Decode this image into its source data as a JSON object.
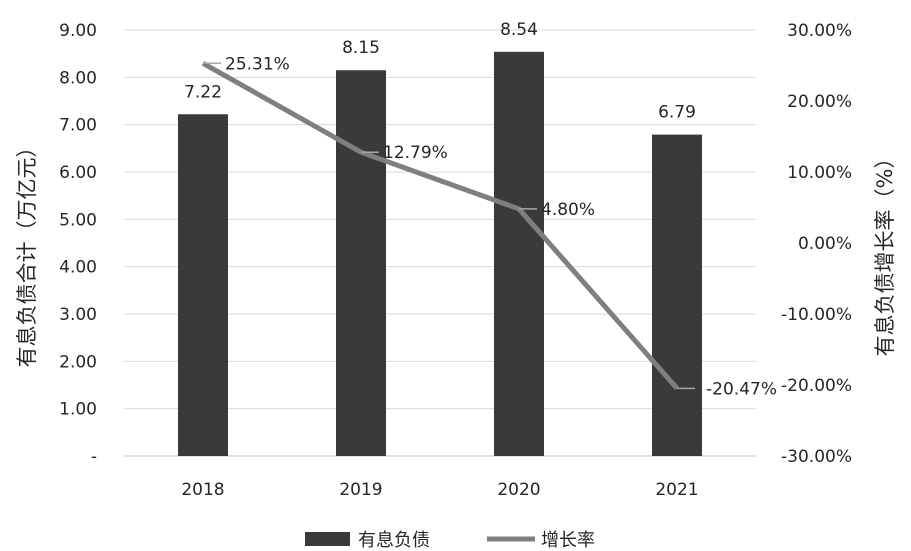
{
  "chart_data": {
    "type": "bar",
    "categories": [
      "2018",
      "2019",
      "2020",
      "2021"
    ],
    "series": [
      {
        "name": "有息负债",
        "type": "bar",
        "axis": "left",
        "values": [
          7.22,
          8.15,
          8.54,
          6.79
        ],
        "labels": [
          "7.22",
          "8.15",
          "8.54",
          "6.79"
        ],
        "color": "#3a3a3a"
      },
      {
        "name": "增长率",
        "type": "line",
        "axis": "right",
        "values": [
          25.31,
          12.79,
          4.8,
          -20.47
        ],
        "labels": [
          "25.31%",
          "12.79%",
          "4.80%",
          "-20.47%"
        ],
        "color": "#7f7f7f"
      }
    ],
    "ylabel": "有息负债合计（万亿元）",
    "y2label": "有息负债增长率（%）",
    "ylim": [
      0,
      9
    ],
    "y2lim": [
      -30,
      30
    ],
    "yticks": [
      "-",
      "1.00",
      "2.00",
      "3.00",
      "4.00",
      "5.00",
      "6.00",
      "7.00",
      "8.00",
      "9.00"
    ],
    "y2ticks": [
      "-30.00%",
      "-20.00%",
      "-10.00%",
      "0.00%",
      "10.00%",
      "20.00%",
      "30.00%"
    ],
    "grid": true,
    "legend": "bottom"
  }
}
